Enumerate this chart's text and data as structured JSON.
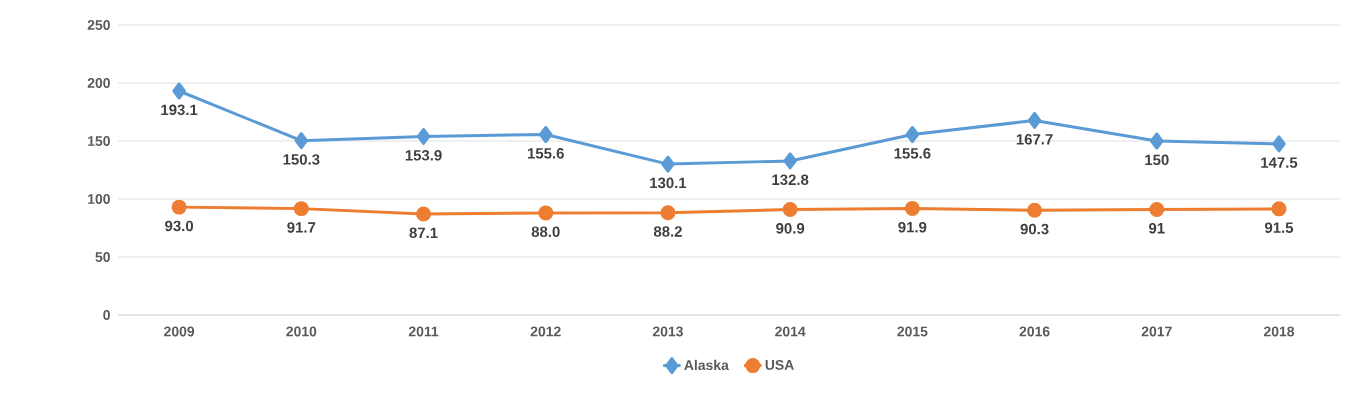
{
  "chart_data": {
    "type": "line",
    "categories": [
      "2009",
      "2010",
      "2011",
      "2012",
      "2013",
      "2014",
      "2015",
      "2016",
      "2017",
      "2018"
    ],
    "series": [
      {
        "name": "Alaska",
        "color": "#5b9bd5",
        "marker": "diamond",
        "values": [
          193.1,
          150.3,
          153.9,
          155.6,
          130.1,
          132.8,
          155.6,
          167.7,
          150,
          147.5
        ],
        "value_labels": [
          "193.1",
          "150.3",
          "153.9",
          "155.6",
          "130.1",
          "132.8",
          "155.6",
          "167.7",
          "150",
          "147.5"
        ]
      },
      {
        "name": "USA",
        "color": "#ed7d31",
        "marker": "circle",
        "values": [
          93.0,
          91.7,
          87.1,
          88.0,
          88.2,
          90.9,
          91.9,
          90.3,
          91,
          91.5
        ],
        "value_labels": [
          "93.0",
          "91.7",
          "87.1",
          "88.0",
          "88.2",
          "90.9",
          "91.9",
          "90.3",
          "91",
          "91.5"
        ]
      }
    ],
    "ylim": [
      0,
      250
    ],
    "yticks": [
      0,
      50,
      100,
      150,
      200,
      250
    ],
    "grid": "y",
    "legend": "bottom",
    "line_style": "solid"
  }
}
